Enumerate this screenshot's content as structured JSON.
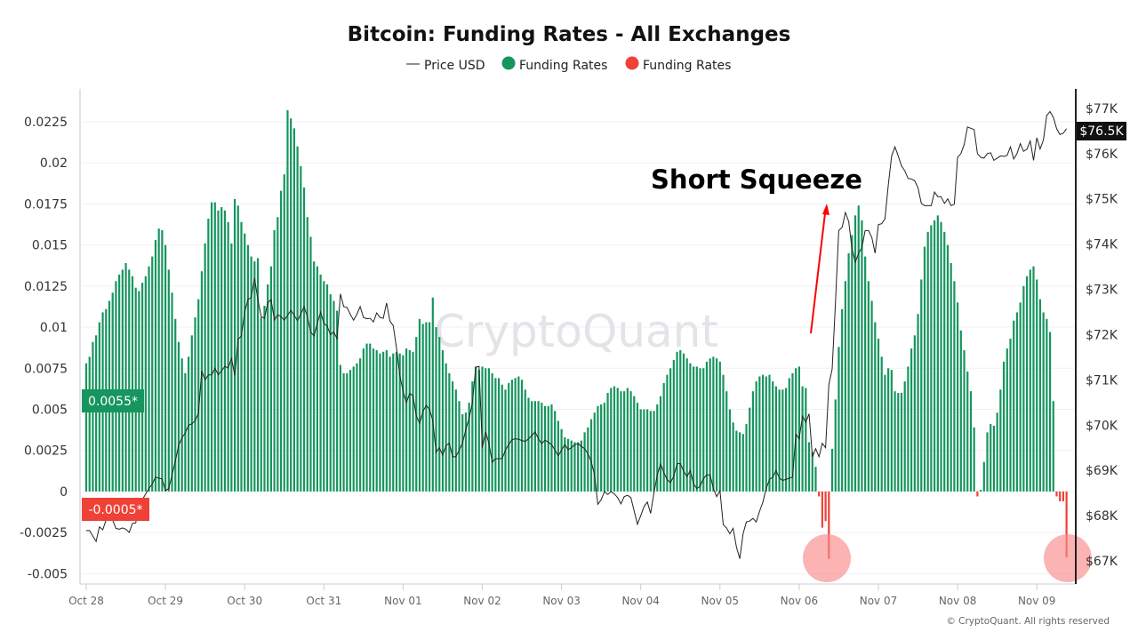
{
  "chart_data": {
    "type": "bar+line",
    "title": "Bitcoin: Funding Rates - All Exchanges",
    "legend": [
      {
        "label": "Price USD",
        "marker": "line",
        "color": "#222222"
      },
      {
        "label": "Funding Rates",
        "marker": "dot",
        "color": "#16955e"
      },
      {
        "label": "Funding Rates",
        "marker": "dot",
        "color": "#ef4136"
      }
    ],
    "legend_position": "top-center",
    "grid": true,
    "x_ticks": [
      "Oct 28",
      "Oct 29",
      "Oct 30",
      "Oct 31",
      "Nov 01",
      "Nov 02",
      "Nov 03",
      "Nov 04",
      "Nov 05",
      "Nov 06",
      "Nov 07",
      "Nov 08",
      "Nov 09"
    ],
    "y_left": {
      "ticks": [
        0.0225,
        0.02,
        0.0175,
        0.015,
        0.0125,
        0.01,
        0.0075,
        0.005,
        0.0025,
        0,
        -0.0025,
        -0.005
      ],
      "tick_labels": [
        "0.0225",
        "0.02",
        "0.0175",
        "0.015",
        "0.0125",
        "0.01",
        "0.0075",
        "0.005",
        "0.0025",
        "0",
        "-0.0025",
        "-0.005"
      ],
      "ylim": [
        -0.00563,
        0.0245
      ]
    },
    "y_right": {
      "ticks": [
        77,
        76,
        75,
        74,
        73,
        72,
        71,
        70,
        69,
        68,
        67
      ],
      "tick_labels": [
        "$77K",
        "$76K",
        "$75K",
        "$74K",
        "$73K",
        "$72K",
        "$71K",
        "$70K",
        "$69K",
        "$68K",
        "$67K"
      ],
      "ylim": [
        66.49,
        77.43
      ],
      "unit": "thousand USD"
    },
    "series_interval": "hourly",
    "funding_rates": {
      "Oct 28": [
        0.0078,
        0.0082,
        0.0091,
        0.0095,
        0.0103,
        0.0109,
        0.0111,
        0.0116,
        0.0121,
        0.0128,
        0.0132,
        0.0135,
        0.0139,
        0.0135,
        0.0131,
        0.0124,
        0.0122,
        0.0127,
        0.0131,
        0.0137,
        0.0143,
        0.0153,
        0.016,
        0.0159
      ],
      "Oct 29": [
        0.015,
        0.0135,
        0.0121,
        0.0105,
        0.0091,
        0.0081,
        0.0072,
        0.0082,
        0.0095,
        0.0106,
        0.0117,
        0.0134,
        0.0151,
        0.0166,
        0.0176,
        0.0176,
        0.0171,
        0.0173,
        0.0171,
        0.0164,
        0.0151,
        0.0178,
        0.0174,
        0.0164
      ],
      "Oct 30": [
        0.0157,
        0.015,
        0.0143,
        0.014,
        0.0142,
        0.0106,
        0.0113,
        0.0126,
        0.0137,
        0.0159,
        0.0167,
        0.0183,
        0.0193,
        0.0232,
        0.0227,
        0.0221,
        0.021,
        0.0198,
        0.0185,
        0.0167,
        0.0155,
        0.014,
        0.0137,
        0.0132
      ],
      "Oct 31": [
        0.0128,
        0.0126,
        0.012,
        0.0116,
        0.011,
        0.0077,
        0.0072,
        0.0072,
        0.0074,
        0.0076,
        0.0078,
        0.0081,
        0.0087,
        0.009,
        0.009,
        0.0087,
        0.0086,
        0.0084,
        0.0085,
        0.0086,
        0.0082,
        0.0084,
        0.0085,
        0.0084
      ],
      "Nov 01": [
        0.0083,
        0.0087,
        0.0086,
        0.0085,
        0.0094,
        0.0105,
        0.0102,
        0.0103,
        0.0103,
        0.0118,
        0.01,
        0.0094,
        0.0086,
        0.0078,
        0.0072,
        0.0067,
        0.0062,
        0.0055,
        0.0047,
        0.0048,
        0.0054,
        0.0067,
        0.0076,
        0.0074
      ],
      "Nov 02": [
        0.0076,
        0.0075,
        0.0075,
        0.0072,
        0.0069,
        0.0069,
        0.0065,
        0.0062,
        0.0066,
        0.0068,
        0.0069,
        0.007,
        0.0068,
        0.0062,
        0.0057,
        0.0055,
        0.0055,
        0.0055,
        0.0054,
        0.0052,
        0.0052,
        0.0053,
        0.0049,
        0.0043
      ],
      "Nov 03": [
        0.0038,
        0.0033,
        0.0032,
        0.0031,
        0.003,
        0.003,
        0.0031,
        0.0036,
        0.0039,
        0.0044,
        0.0048,
        0.0052,
        0.0053,
        0.0054,
        0.006,
        0.0063,
        0.0064,
        0.0063,
        0.0061,
        0.0061,
        0.0063,
        0.0061,
        0.0058,
        0.0054
      ],
      "Nov 04": [
        0.005,
        0.005,
        0.005,
        0.0049,
        0.0049,
        0.0053,
        0.0058,
        0.0066,
        0.0071,
        0.0075,
        0.008,
        0.0085,
        0.0086,
        0.0084,
        0.0081,
        0.0078,
        0.0076,
        0.0076,
        0.0075,
        0.0075,
        0.0079,
        0.0081,
        0.0082,
        0.0081
      ],
      "Nov 05": [
        0.0079,
        0.0071,
        0.0061,
        0.005,
        0.0042,
        0.0037,
        0.0036,
        0.0035,
        0.0041,
        0.0051,
        0.0061,
        0.0067,
        0.007,
        0.0071,
        0.007,
        0.0071,
        0.0067,
        0.0064,
        0.0062,
        0.0062,
        0.0063,
        0.0069,
        0.0072,
        0.0075
      ],
      "Nov 06": [
        0.0076,
        0.0064,
        0.0063,
        0.003,
        0.0024,
        0.0015,
        -0.0003,
        -0.0022,
        -0.0018,
        -0.0041,
        0.0026,
        0.0056,
        0.0088,
        0.0111,
        0.0128,
        0.0145,
        0.0156,
        0.0168,
        0.0174,
        0.0165,
        0.0143,
        0.0128,
        0.0116,
        0.0103
      ],
      "Nov 07": [
        0.0093,
        0.0082,
        0.0071,
        0.0075,
        0.0074,
        0.0061,
        0.006,
        0.006,
        0.0067,
        0.0076,
        0.0087,
        0.0095,
        0.0108,
        0.0129,
        0.0149,
        0.0158,
        0.0162,
        0.0165,
        0.0168,
        0.0164,
        0.0158,
        0.015,
        0.0139,
        0.0128
      ],
      "Nov 08": [
        0.0115,
        0.0098,
        0.0086,
        0.0073,
        0.0061,
        0.0039,
        -0.0003,
        0.0001,
        0.0018,
        0.0036,
        0.0041,
        0.004,
        0.0048,
        0.0062,
        0.0079,
        0.0087,
        0.0093,
        0.0104,
        0.0109,
        0.0115,
        0.0125,
        0.0131,
        0.0135,
        0.0137
      ],
      "Nov 09": [
        0.0129,
        0.0117,
        0.0109,
        0.0105,
        0.0097,
        0.0055,
        -0.0003,
        -0.0006,
        -0.0006,
        -0.004
      ]
    },
    "price_usd_k": {
      "Oct 28": [
        67.67,
        67.67,
        67.55,
        67.43,
        67.75,
        67.69,
        67.9,
        68.08,
        67.9,
        67.72,
        67.7,
        67.73,
        67.7,
        67.63,
        67.83,
        67.84,
        68.3,
        68.35,
        68.48,
        68.6,
        68.7,
        68.85,
        68.83,
        68.81
      ],
      "Oct 29": [
        68.55,
        68.6,
        68.9,
        69.2,
        69.55,
        69.72,
        69.83,
        70.0,
        70.03,
        70.1,
        70.26,
        71.2,
        71.0,
        71.11,
        71.11,
        71.26,
        71.11,
        71.2,
        71.3,
        71.26,
        71.48,
        71.1,
        71.9,
        71.97
      ],
      "Oct 30": [
        72.5,
        72.78,
        72.82,
        73.25,
        72.78,
        72.4,
        72.36,
        72.7,
        72.78,
        72.32,
        72.44,
        72.4,
        72.32,
        72.43,
        72.54,
        72.43,
        72.31,
        72.45,
        72.62,
        72.4,
        72.06,
        71.97,
        72.25,
        72.5
      ],
      "Oct 31": [
        72.25,
        72.19,
        72.0,
        72.06,
        71.91,
        72.9,
        72.62,
        72.6,
        72.45,
        72.32,
        72.45,
        72.62,
        72.38,
        72.35,
        72.36,
        72.28,
        72.48,
        72.38,
        72.36,
        72.7,
        72.3,
        72.2,
        71.7,
        71.1
      ],
      "Nov 01": [
        70.75,
        70.5,
        70.7,
        70.65,
        70.2,
        70.04,
        70.3,
        70.44,
        70.35,
        70.1,
        69.4,
        69.5,
        69.34,
        69.55,
        69.6,
        69.3,
        69.3,
        69.45,
        69.6,
        69.9,
        70.15,
        70.5,
        71.28,
        71.3
      ],
      "Nov 02": [
        69.5,
        69.85,
        69.6,
        69.18,
        69.26,
        69.26,
        69.26,
        69.45,
        69.57,
        69.68,
        69.7,
        69.69,
        69.66,
        69.64,
        69.7,
        69.77,
        69.85,
        69.7,
        69.59,
        69.67,
        69.62,
        69.57,
        69.45,
        69.32
      ],
      "Nov 03": [
        69.45,
        69.57,
        69.46,
        69.5,
        69.57,
        69.59,
        69.53,
        69.48,
        69.37,
        69.2,
        68.9,
        68.25,
        68.35,
        68.53,
        68.47,
        68.53,
        68.48,
        68.4,
        68.26,
        68.42,
        68.45,
        68.4,
        68.1,
        67.81
      ],
      "Nov 04": [
        68.0,
        68.2,
        68.3,
        68.05,
        68.5,
        68.9,
        69.14,
        68.95,
        68.8,
        68.73,
        68.87,
        69.15,
        69.15,
        68.98,
        68.86,
        69.0,
        68.7,
        68.6,
        68.65,
        68.82,
        68.9,
        68.9,
        68.6,
        68.42
      ],
      "Nov 05": [
        68.55,
        67.8,
        67.73,
        67.6,
        67.72,
        67.3,
        67.05,
        67.6,
        67.86,
        67.88,
        67.94,
        67.86,
        68.1,
        68.3,
        68.6,
        68.8,
        68.85,
        69.0,
        68.83,
        68.78,
        68.8,
        68.83,
        68.85,
        69.8
      ],
      "Nov 06": [
        69.7,
        70.2,
        70.06,
        70.25,
        69.3,
        69.48,
        69.3,
        69.6,
        69.5,
        70.9,
        71.24,
        72.7,
        74.3,
        74.37,
        74.7,
        74.5,
        73.9,
        73.6,
        73.8,
        73.92,
        74.3,
        74.3,
        74.15,
        73.8
      ],
      "Nov 07": [
        74.43,
        74.45,
        74.56,
        75.3,
        75.95,
        76.15,
        75.95,
        75.73,
        75.62,
        75.45,
        75.44,
        75.4,
        75.25,
        74.9,
        74.85,
        74.85,
        74.85,
        75.15,
        75.05,
        75.05,
        74.9,
        75.0,
        74.85,
        74.88
      ],
      "Nov 08": [
        75.92,
        76.0,
        76.2,
        76.59,
        76.56,
        76.53,
        76.0,
        75.92,
        75.9,
        76.0,
        76.02,
        75.85,
        75.9,
        75.95,
        75.94,
        75.96,
        76.15,
        75.88,
        76.0,
        76.22,
        76.05,
        76.1,
        76.28,
        75.85
      ],
      "Nov 09": [
        76.35,
        76.1,
        76.3,
        76.84,
        76.93,
        76.8,
        76.55,
        76.42,
        76.45,
        76.55
      ]
    },
    "current_labels": {
      "price": "$76.5K",
      "funding_positive": "0.0055*",
      "funding_negative": "-0.0005*"
    },
    "annotations": {
      "text": "Short Squeeze",
      "arrow_color": "#ff0000",
      "highlight_color": "#f98b8b"
    },
    "watermark": "CryptoQuant",
    "colors": {
      "positive": "#16955e",
      "negative": "#ef4136",
      "price": "#222222"
    }
  },
  "footer": "© CryptoQuant. All rights reserved"
}
